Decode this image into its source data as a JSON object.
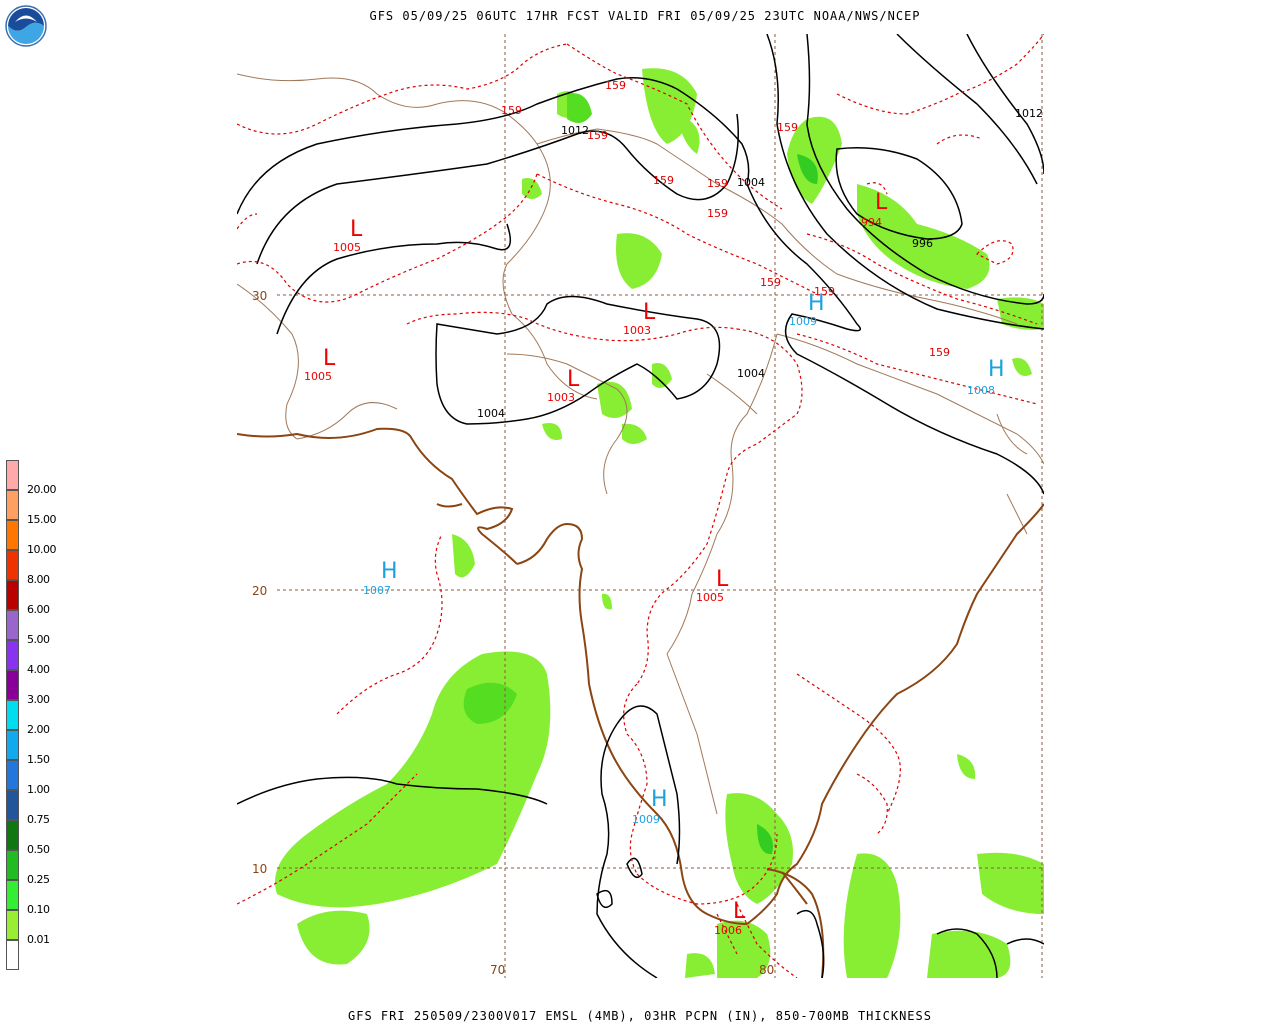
{
  "header": {
    "title": "GFS 05/09/25 06UTC 17HR FCST VALID FRI 05/09/25 23UTC NOAA/NWS/NCEP",
    "caption": "GFS FRI 250509/2300V017 EMSL (4MB), 03HR PCPN (IN), 850-700MB THICKNESS",
    "logo_icon": "noaa-logo-icon"
  },
  "colors": {
    "coast": "#8b4513",
    "border": "#a0785a",
    "isobar": "#000000",
    "thickness": "#dd0000",
    "low": "#ee0000",
    "high": "#1ca0e0",
    "precip": "#88ee33"
  },
  "map": {
    "grid": {
      "lat_labels": [
        "30",
        "20",
        "10"
      ],
      "lon_labels": [
        "70",
        "80"
      ]
    },
    "lows": [
      {
        "symbol": "L",
        "value": "1005"
      },
      {
        "symbol": "L",
        "value": "1005"
      },
      {
        "symbol": "L",
        "value": "1003"
      },
      {
        "symbol": "L",
        "value": "1003"
      },
      {
        "symbol": "L",
        "value": "994"
      },
      {
        "symbol": "L",
        "value": "1005"
      },
      {
        "symbol": "L",
        "value": "1006"
      }
    ],
    "highs": [
      {
        "symbol": "H",
        "value": "1009"
      },
      {
        "symbol": "H",
        "value": "1008"
      },
      {
        "symbol": "H",
        "value": "1007"
      },
      {
        "symbol": "H",
        "value": "1009"
      }
    ],
    "isobar_labels": [
      "1012",
      "1004",
      "1004",
      "996",
      "1012",
      "1004"
    ],
    "thickness_labels": [
      "159",
      "159",
      "159",
      "159",
      "159",
      "159",
      "159",
      "159",
      "159",
      "159"
    ]
  },
  "legend": {
    "levels": [
      "20.00",
      "15.00",
      "10.00",
      "8.00",
      "6.00",
      "5.00",
      "4.00",
      "3.00",
      "2.00",
      "1.50",
      "1.00",
      "0.75",
      "0.50",
      "0.25",
      "0.10",
      "0.01"
    ],
    "colors": [
      "#ffaaaa",
      "#ffa060",
      "#ff7700",
      "#ee3300",
      "#bb0000",
      "#9966cc",
      "#8833ee",
      "#880099",
      "#00ddee",
      "#11aaee",
      "#2277dd",
      "#225599",
      "#117711",
      "#22bb22",
      "#33ee33",
      "#99ee33",
      "#ffffff"
    ]
  }
}
